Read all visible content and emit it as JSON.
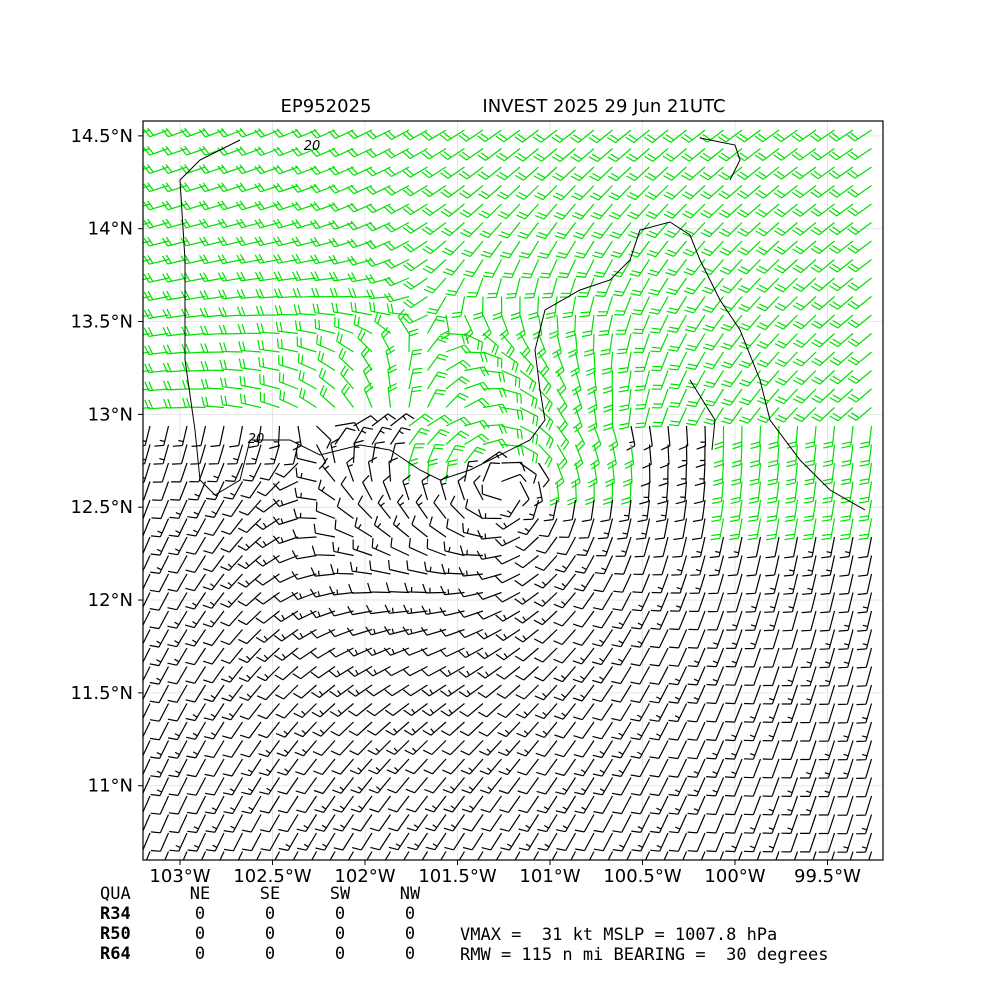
{
  "map": {
    "title_left": "EP952025",
    "title_right": "INVEST 2025 29 Jun 21UTC",
    "xlim": [
      -103.2,
      -99.2
    ],
    "ylim": [
      10.6,
      14.58
    ],
    "xticks": [
      {
        "value": -103,
        "label": "103°W"
      },
      {
        "value": -102.5,
        "label": "102.5°W"
      },
      {
        "value": -102,
        "label": "102°W"
      },
      {
        "value": -101.5,
        "label": "101.5°W"
      },
      {
        "value": -101,
        "label": "101°W"
      },
      {
        "value": -100.5,
        "label": "100.5°W"
      },
      {
        "value": -100,
        "label": "100°W"
      },
      {
        "value": -99.5,
        "label": "99.5°W"
      }
    ],
    "yticks": [
      {
        "value": 11,
        "label": "11°N"
      },
      {
        "value": 11.5,
        "label": "11.5°N"
      },
      {
        "value": 12,
        "label": "12°N"
      },
      {
        "value": 12.5,
        "label": "12.5°N"
      },
      {
        "value": 13,
        "label": "13°N"
      },
      {
        "value": 13.5,
        "label": "13.5°N"
      },
      {
        "value": 14,
        "label": "14°N"
      },
      {
        "value": 14.5,
        "label": "14.5°N"
      }
    ],
    "contour_labels": [
      "20",
      "20"
    ]
  },
  "table": {
    "header": [
      "QUA",
      "NE",
      "SE",
      "SW",
      "NW"
    ],
    "rows": [
      [
        "R34",
        "0",
        "0",
        "0",
        "0"
      ],
      [
        "R50",
        "0",
        "0",
        "0",
        "0"
      ],
      [
        "R64",
        "0",
        "0",
        "0",
        "0"
      ]
    ]
  },
  "info": [
    "VMAX =  31 kt MSLP = 1007.8 hPa",
    "RMW = 115 n mi BEARING =  30 degrees"
  ]
}
